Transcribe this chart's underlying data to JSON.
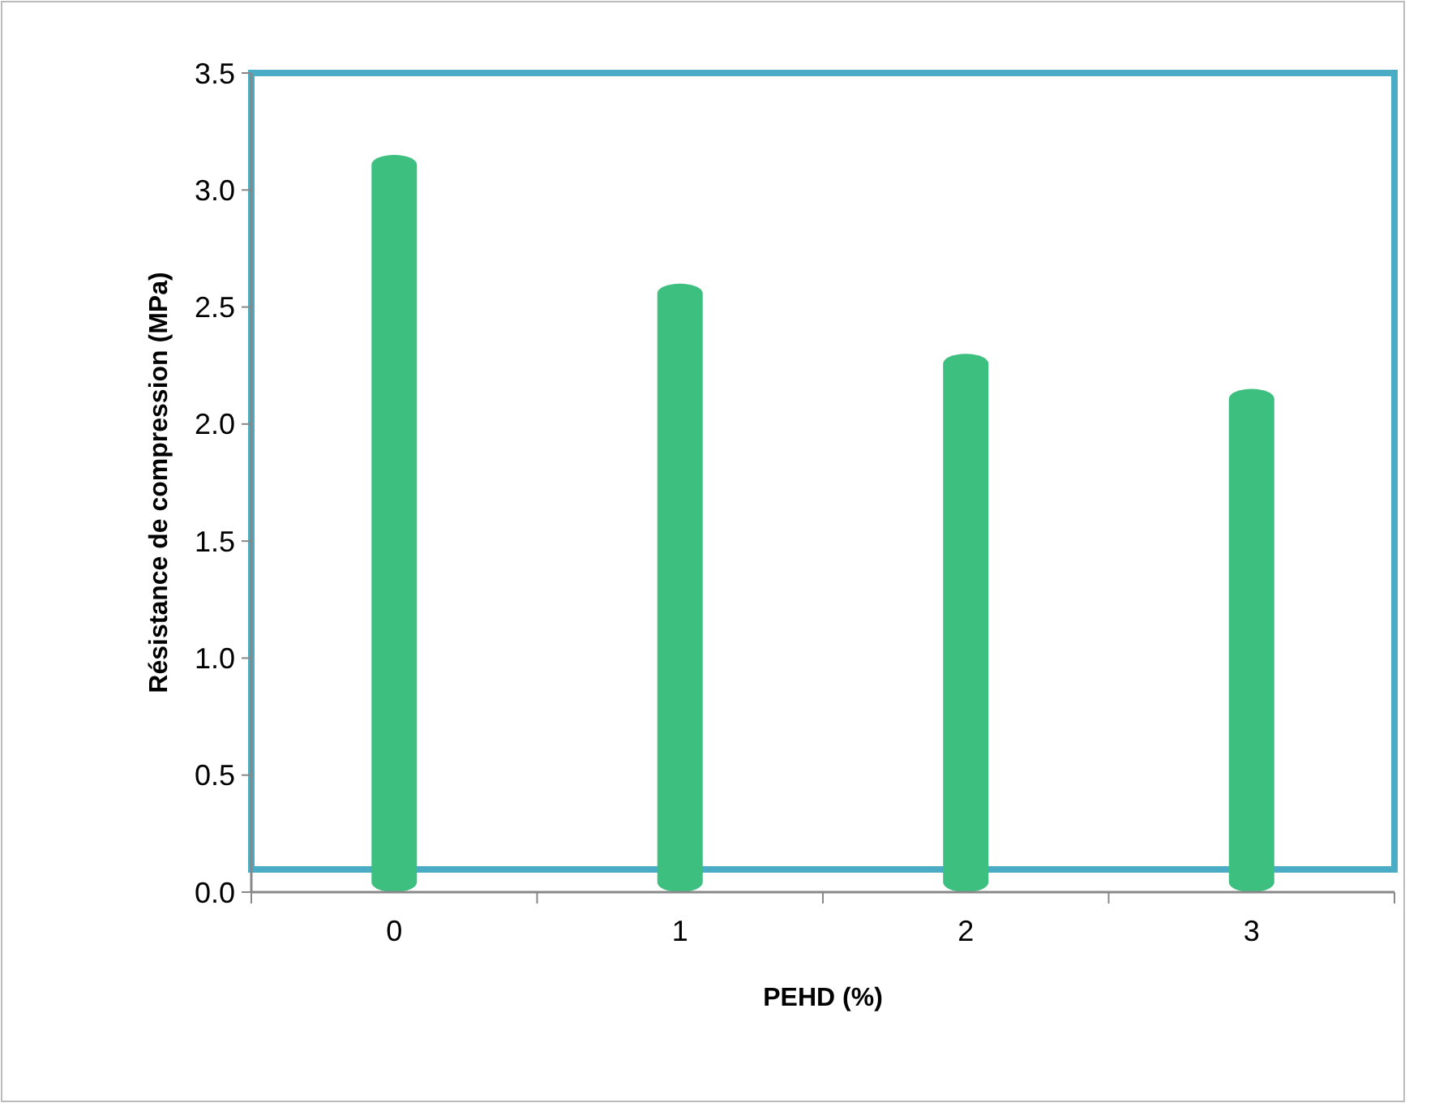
{
  "chart_data": {
    "type": "bar",
    "xlabel": "PEHD (%)",
    "ylabel": "Résistance de compression (MPa)",
    "categories": [
      "0",
      "1",
      "2",
      "3"
    ],
    "values": [
      3.15,
      2.6,
      2.3,
      2.15
    ],
    "color": "#3dbf7f",
    "ylim": [
      0,
      3.5
    ],
    "yticks": [
      {
        "value": 0,
        "label": "0.0"
      },
      {
        "value": 0.5,
        "label": "0.5"
      },
      {
        "value": 1,
        "label": "1.0"
      },
      {
        "value": 1.5,
        "label": "1.5"
      },
      {
        "value": 2,
        "label": "2.0"
      },
      {
        "value": 2.5,
        "label": "2.5"
      },
      {
        "value": 3,
        "label": "3.0"
      },
      {
        "value": 3.5,
        "label": "3.5"
      }
    ],
    "grid": false
  }
}
